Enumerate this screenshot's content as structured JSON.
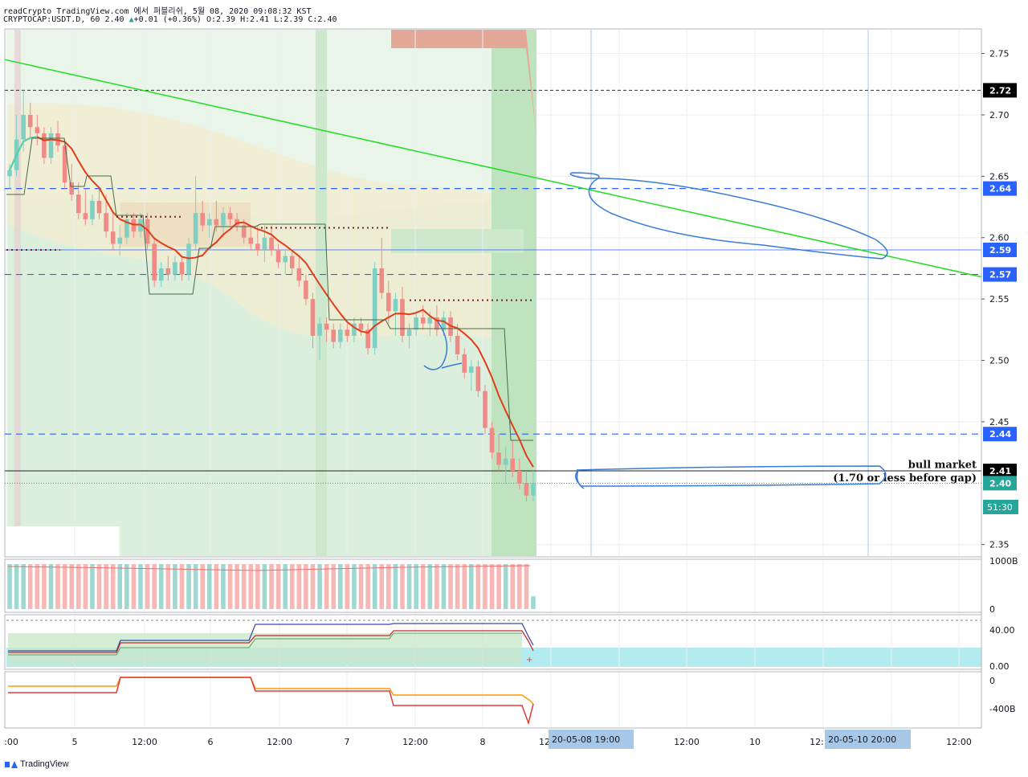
{
  "header": {
    "line1": "readCrypto TradingView.com 에서 퍼블리쉬, 5월 08, 2020 09:08:32 KST",
    "symbol": "CRYPTOCAP:USDT.D, 60",
    "price": "2.40",
    "change_symbol": "▲",
    "change": "+0.01 (+0.36%)",
    "ohlc": "O:2.39 H:2.41 L:2.39 C:2.40"
  },
  "footer": {
    "logo_text": "TradingView"
  },
  "colors": {
    "up": "#26a69a",
    "down": "#ef5350",
    "trend": "#22dd22",
    "ma": "#e23c1a",
    "blue_dash": "#2962ff",
    "drawing": "#3a7bd5",
    "cyan_zone": "#b3ecf0"
  },
  "chart_data": {
    "type": "candlestick",
    "price_axis": {
      "ylim": [
        2.34,
        2.77
      ],
      "ticks": [
        "2.75",
        "2.70",
        "2.65",
        "2.60",
        "2.55",
        "2.50",
        "2.45",
        "2.35"
      ]
    },
    "price_labels": [
      {
        "value": 2.72,
        "text": "2.72",
        "style": "dark"
      },
      {
        "value": 2.64,
        "text": "2.64",
        "style": "blue"
      },
      {
        "value": 2.59,
        "text": "2.59",
        "style": "blue"
      },
      {
        "value": 2.57,
        "text": "2.57",
        "style": "blue"
      },
      {
        "value": 2.44,
        "text": "2.44",
        "style": "blue"
      },
      {
        "value": 2.41,
        "text": "2.41",
        "style": "dark"
      },
      {
        "value": 2.4,
        "text": "2.40",
        "style": "green"
      }
    ],
    "countdown": "51:30",
    "annotations": [
      {
        "text": "bull market",
        "value": 2.415
      },
      {
        "text": "(1.70 or less before gap)",
        "value": 2.404
      }
    ],
    "x_ticks": [
      ":00",
      "5",
      "12:00",
      "6",
      "12:00",
      "7",
      "12:00",
      "8",
      "12"
    ],
    "x_ticks_right": [
      "12:00",
      "10",
      "12:",
      "12:00"
    ],
    "x_labels_highlight": [
      "20-05-08   19:00",
      "20-05-10   20:00"
    ],
    "volume_axis": [
      "1000B",
      "0"
    ],
    "ind1_axis": [
      "40.00",
      "0.00"
    ],
    "ind2_axis": [
      "0",
      "-400B"
    ],
    "candles": [
      [
        2.65,
        2.66,
        2.64,
        2.655
      ],
      [
        2.655,
        2.7,
        2.65,
        2.68
      ],
      [
        2.68,
        2.72,
        2.67,
        2.7
      ],
      [
        2.7,
        2.71,
        2.68,
        2.69
      ],
      [
        2.69,
        2.7,
        2.675,
        2.685
      ],
      [
        2.685,
        2.69,
        2.66,
        2.665
      ],
      [
        2.665,
        2.69,
        2.66,
        2.685
      ],
      [
        2.685,
        2.695,
        2.67,
        2.675
      ],
      [
        2.675,
        2.68,
        2.64,
        2.645
      ],
      [
        2.645,
        2.66,
        2.63,
        2.635
      ],
      [
        2.635,
        2.645,
        2.615,
        2.62
      ],
      [
        2.62,
        2.64,
        2.61,
        2.615
      ],
      [
        2.615,
        2.635,
        2.61,
        2.63
      ],
      [
        2.63,
        2.64,
        2.615,
        2.62
      ],
      [
        2.62,
        2.635,
        2.6,
        2.605
      ],
      [
        2.605,
        2.62,
        2.59,
        2.595
      ],
      [
        2.595,
        2.61,
        2.585,
        2.6
      ],
      [
        2.6,
        2.62,
        2.595,
        2.615
      ],
      [
        2.615,
        2.62,
        2.6,
        2.605
      ],
      [
        2.605,
        2.62,
        2.6,
        2.615
      ],
      [
        2.615,
        2.62,
        2.59,
        2.595
      ],
      [
        2.595,
        2.6,
        2.56,
        2.565
      ],
      [
        2.565,
        2.58,
        2.56,
        2.575
      ],
      [
        2.575,
        2.585,
        2.565,
        2.57
      ],
      [
        2.57,
        2.585,
        2.565,
        2.58
      ],
      [
        2.58,
        2.585,
        2.565,
        2.57
      ],
      [
        2.57,
        2.6,
        2.565,
        2.595
      ],
      [
        2.595,
        2.65,
        2.59,
        2.62
      ],
      [
        2.62,
        2.63,
        2.605,
        2.61
      ],
      [
        2.61,
        2.62,
        2.6,
        2.615
      ],
      [
        2.615,
        2.63,
        2.605,
        2.61
      ],
      [
        2.61,
        2.625,
        2.6,
        2.62
      ],
      [
        2.62,
        2.625,
        2.61,
        2.615
      ],
      [
        2.615,
        2.62,
        2.605,
        2.61
      ],
      [
        2.61,
        2.615,
        2.595,
        2.6
      ],
      [
        2.6,
        2.61,
        2.59,
        2.595
      ],
      [
        2.595,
        2.61,
        2.585,
        2.59
      ],
      [
        2.59,
        2.61,
        2.58,
        2.6
      ],
      [
        2.6,
        2.61,
        2.585,
        2.59
      ],
      [
        2.59,
        2.595,
        2.575,
        2.58
      ],
      [
        2.58,
        2.59,
        2.57,
        2.585
      ],
      [
        2.585,
        2.59,
        2.57,
        2.575
      ],
      [
        2.575,
        2.585,
        2.56,
        2.565
      ],
      [
        2.565,
        2.57,
        2.545,
        2.55
      ],
      [
        2.55,
        2.555,
        2.51,
        2.52
      ],
      [
        2.52,
        2.535,
        2.5,
        2.53
      ],
      [
        2.53,
        2.535,
        2.515,
        2.525
      ],
      [
        2.525,
        2.53,
        2.51,
        2.515
      ],
      [
        2.515,
        2.53,
        2.51,
        2.525
      ],
      [
        2.525,
        2.53,
        2.515,
        2.52
      ],
      [
        2.52,
        2.535,
        2.515,
        2.53
      ],
      [
        2.53,
        2.535,
        2.52,
        2.525
      ],
      [
        2.525,
        2.53,
        2.505,
        2.51
      ],
      [
        2.51,
        2.58,
        2.505,
        2.575
      ],
      [
        2.575,
        2.6,
        2.55,
        2.555
      ],
      [
        2.555,
        2.565,
        2.53,
        2.54
      ],
      [
        2.54,
        2.555,
        2.52,
        2.55
      ],
      [
        2.55,
        2.56,
        2.515,
        2.52
      ],
      [
        2.52,
        2.53,
        2.51,
        2.525
      ],
      [
        2.525,
        2.54,
        2.52,
        2.535
      ],
      [
        2.535,
        2.545,
        2.525,
        2.53
      ],
      [
        2.53,
        2.54,
        2.52,
        2.535
      ],
      [
        2.535,
        2.545,
        2.52,
        2.525
      ],
      [
        2.525,
        2.54,
        2.52,
        2.535
      ],
      [
        2.535,
        2.54,
        2.515,
        2.52
      ],
      [
        2.52,
        2.53,
        2.5,
        2.505
      ],
      [
        2.505,
        2.51,
        2.485,
        2.49
      ],
      [
        2.49,
        2.5,
        2.475,
        2.495
      ],
      [
        2.495,
        2.5,
        2.47,
        2.475
      ],
      [
        2.475,
        2.48,
        2.44,
        2.445
      ],
      [
        2.445,
        2.45,
        2.42,
        2.425
      ],
      [
        2.425,
        2.44,
        2.41,
        2.415
      ],
      [
        2.415,
        2.43,
        2.4,
        2.42
      ],
      [
        2.42,
        2.435,
        2.405,
        2.41
      ],
      [
        2.41,
        2.42,
        2.395,
        2.4
      ],
      [
        2.4,
        2.41,
        2.385,
        2.39
      ],
      [
        2.39,
        2.41,
        2.385,
        2.4
      ]
    ]
  }
}
